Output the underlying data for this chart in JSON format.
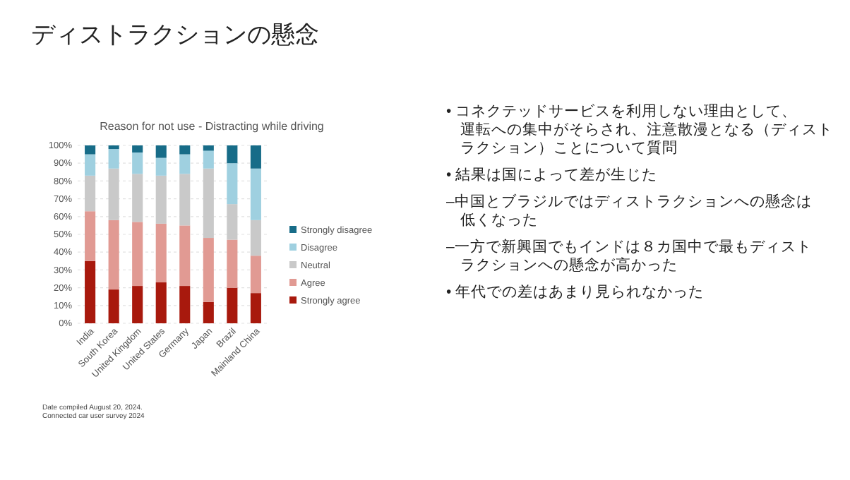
{
  "chart_data": {
    "type": "bar",
    "stacked": true,
    "title": "ディストラクションの懸念",
    "subtitle": "Reason for not use - Distracting while driving",
    "categories": [
      "India",
      "South Korea",
      "United Kingdom",
      "United States",
      "Germany",
      "Japan",
      "Brazil",
      "Mainland China"
    ],
    "series": [
      {
        "name": "Strongly agree",
        "color": "#a8190d",
        "values": [
          35,
          19,
          21,
          23,
          21,
          12,
          20,
          17
        ]
      },
      {
        "name": "Agree",
        "color": "#e19a93",
        "values": [
          28,
          39,
          36,
          33,
          34,
          36,
          27,
          21
        ]
      },
      {
        "name": "Neutral",
        "color": "#c9c9c9",
        "values": [
          20,
          29,
          27,
          27,
          29,
          39,
          20,
          20
        ]
      },
      {
        "name": "Disagree",
        "color": "#9fd0e0",
        "values": [
          12,
          11,
          12,
          10,
          11,
          10,
          23,
          29
        ]
      },
      {
        "name": "Strongly disagree",
        "color": "#176c88",
        "values": [
          5,
          2,
          4,
          7,
          5,
          3,
          10,
          13
        ]
      }
    ],
    "ylim": [
      0,
      100
    ],
    "yticks": [
      {
        "value": 0,
        "label": "0%"
      },
      {
        "value": 10,
        "label": "10%"
      },
      {
        "value": 20,
        "label": "20%"
      },
      {
        "value": 30,
        "label": "30%"
      },
      {
        "value": 40,
        "label": "40%"
      },
      {
        "value": 50,
        "label": "50%"
      },
      {
        "value": 60,
        "label": "60%"
      },
      {
        "value": 70,
        "label": "70%"
      },
      {
        "value": 80,
        "label": "80%"
      },
      {
        "value": 90,
        "label": "90%"
      },
      {
        "value": 100,
        "label": "100%"
      }
    ],
    "grid": "y",
    "legend": "right",
    "annotations": [
      "• コネクテッドサービスを利用しない理由として、運転への集中がそらされ、注意散漫となる（ディストラクション）ことについて質問",
      "• 結果は国によって差が生じた",
      "–中国とブラジルではディストラクションへの懸念は低くなった",
      "–一方で新興国でもインドは８カ国中で最もディストラクションへの懸念が高かった",
      "• 年代での差はあまり見られなかった",
      "Date compiled August 20, 2024.",
      "Connected car user survey 2024"
    ]
  }
}
